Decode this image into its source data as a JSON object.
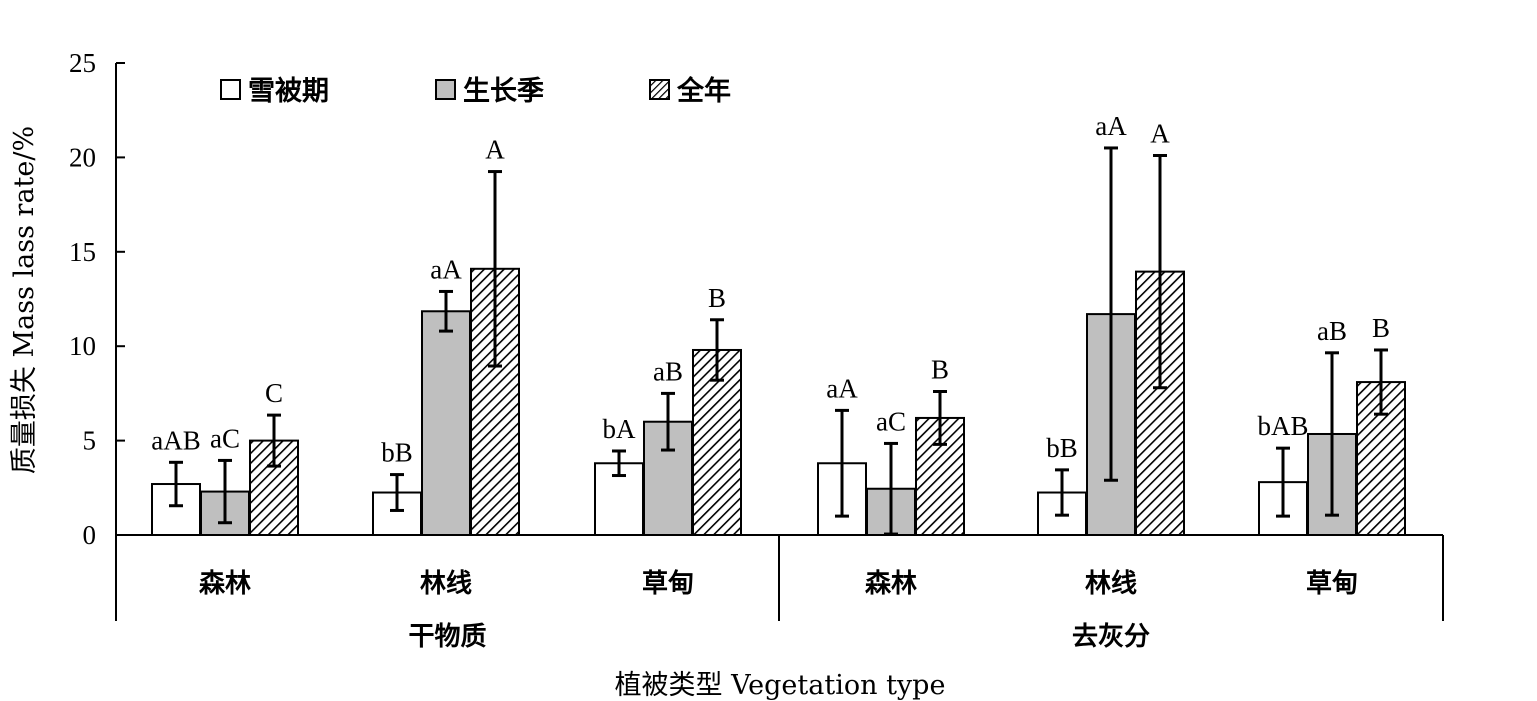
{
  "chart_data": {
    "type": "bar",
    "xlabel": "植被类型 Vegetation type",
    "ylabel": "质量损失 Mass lass rate/%",
    "ylim": [
      0,
      25
    ],
    "yticks": [
      0,
      5,
      10,
      15,
      20,
      25
    ],
    "groups": [
      {
        "name": "干物质",
        "categories": [
          "森林",
          "林线",
          "草甸"
        ]
      },
      {
        "name": "去灰分",
        "categories": [
          "森林",
          "林线",
          "草甸"
        ]
      }
    ],
    "legend_position": "top-left",
    "series": [
      {
        "name": "雪被期",
        "pattern": "white",
        "values": [
          2.7,
          2.25,
          3.8,
          3.8,
          2.25,
          2.8
        ],
        "errors": [
          1.15,
          0.95,
          0.65,
          2.8,
          1.2,
          1.8
        ],
        "labels": [
          "aAB",
          "bB",
          "bA",
          "aA",
          "bB",
          "bAB"
        ]
      },
      {
        "name": "生长季",
        "pattern": "gray",
        "values": [
          2.3,
          11.85,
          6.0,
          2.45,
          11.7,
          5.35
        ],
        "errors": [
          1.65,
          1.05,
          1.5,
          2.4,
          8.8,
          4.3
        ],
        "labels": [
          "aC",
          "aA",
          "aB",
          "aC",
          "aA",
          "aB"
        ]
      },
      {
        "name": "全年",
        "pattern": "hatch",
        "values": [
          5.0,
          14.1,
          9.8,
          6.2,
          13.95,
          8.1
        ],
        "errors": [
          1.35,
          5.15,
          1.6,
          1.4,
          6.15,
          1.7
        ],
        "labels": [
          "C",
          "A",
          "B",
          "B",
          "A",
          "B"
        ]
      }
    ],
    "colors": {
      "white": "#ffffff",
      "gray": "#bfbfbf",
      "hatch_bg": "#ffffff",
      "hatch_line": "#000000",
      "stroke": "#000000"
    }
  }
}
